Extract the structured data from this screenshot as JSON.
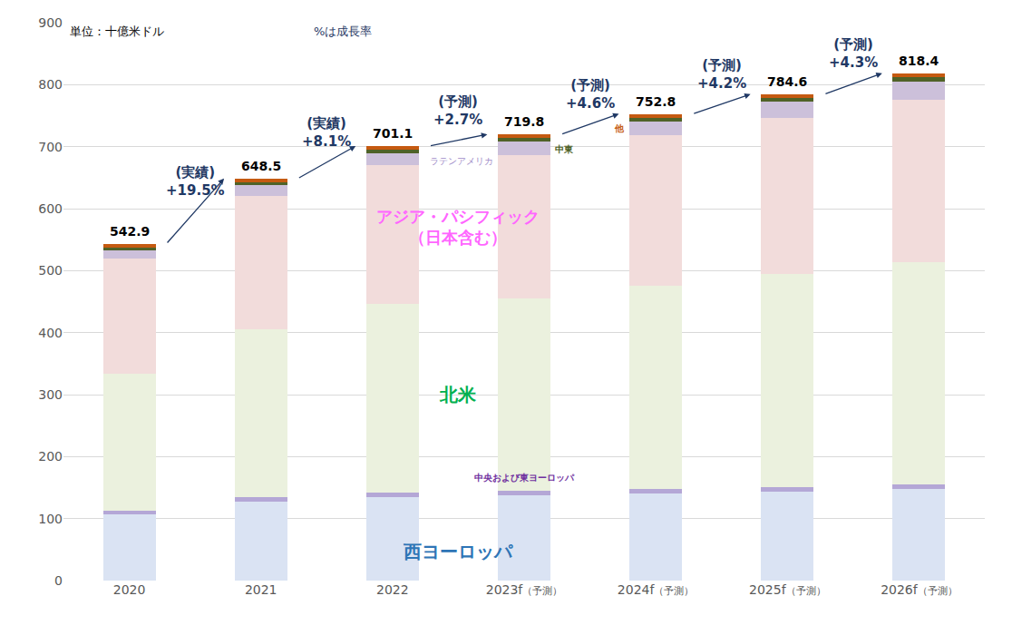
{
  "chart_data": {
    "type": "bar",
    "stacked": true,
    "grid": true,
    "notes": [
      "単位：十億米ドル",
      "%は成長率"
    ],
    "categories": [
      "2020",
      "2021",
      "2022",
      "2023f（予測）",
      "2024f（予測）",
      "2025f（予測）",
      "2026f（予測）"
    ],
    "series": [
      {
        "name": "西ヨーロッパ",
        "color": "#dae3f3",
        "values": [
          107,
          127,
          135,
          138,
          141,
          144,
          148
        ]
      },
      {
        "name": "中央および東ヨーロッパ",
        "color": "#b4a7d6",
        "values": [
          6,
          7,
          7,
          7,
          7,
          7,
          7
        ]
      },
      {
        "name": "北米",
        "color": "#ebf1de",
        "values": [
          220,
          271,
          304,
          310,
          328,
          343,
          359
        ]
      },
      {
        "name": "アジア・パシフィック（日本含む）",
        "color": "#f2dcdb",
        "values": [
          186,
          215,
          224,
          231,
          242,
          252,
          261
        ]
      },
      {
        "name": "ラテンアメリカ",
        "color": "#ccc0da",
        "values": [
          13,
          18,
          20,
          22,
          23,
          26,
          30
        ]
      },
      {
        "name": "中東",
        "color": "#4f6228",
        "values": [
          5,
          5,
          5,
          6,
          6,
          6,
          7
        ]
      },
      {
        "name": "他",
        "color": "#c55a11",
        "values": [
          5.9,
          5.5,
          6.1,
          5.8,
          5.8,
          6.6,
          6.4
        ]
      }
    ],
    "totals": [
      542.9,
      648.5,
      701.1,
      719.8,
      752.8,
      784.6,
      818.4
    ],
    "growth_labels": [
      [
        "(実績)",
        "+19.5%"
      ],
      [
        "(実績)",
        "+8.1%"
      ],
      [
        "(予測)",
        "+2.7%"
      ],
      [
        "(予測)",
        "+4.6%"
      ],
      [
        "(予測)",
        "+4.2%"
      ],
      [
        "(予測)",
        "+4.3%"
      ]
    ],
    "ylim": [
      0,
      900
    ],
    "yticks": [
      0,
      100,
      200,
      300,
      400,
      500,
      600,
      700,
      800,
      900
    ]
  }
}
